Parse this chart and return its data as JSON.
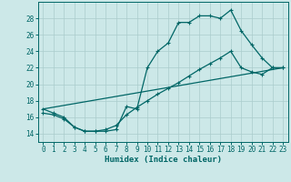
{
  "xlabel": "Humidex (Indice chaleur)",
  "background_color": "#cce8e8",
  "grid_color": "#aacccc",
  "line_color": "#006666",
  "xlim": [
    -0.5,
    23.5
  ],
  "ylim": [
    13.0,
    30.0
  ],
  "yticks": [
    14,
    16,
    18,
    20,
    22,
    24,
    26,
    28
  ],
  "xticks": [
    0,
    1,
    2,
    3,
    4,
    5,
    6,
    7,
    8,
    9,
    10,
    11,
    12,
    13,
    14,
    15,
    16,
    17,
    18,
    19,
    20,
    21,
    22,
    23
  ],
  "line1_x": [
    0,
    1,
    2,
    3,
    4,
    5,
    6,
    7,
    8,
    9,
    10,
    11,
    12,
    13,
    14,
    15,
    16,
    17,
    18,
    19,
    20,
    21,
    22,
    23
  ],
  "line1_y": [
    17.0,
    16.5,
    16.0,
    14.8,
    14.3,
    14.3,
    14.3,
    14.5,
    17.3,
    17.0,
    22.0,
    24.0,
    25.0,
    27.5,
    27.5,
    28.3,
    28.3,
    28.0,
    29.0,
    26.5,
    24.8,
    23.2,
    22.0,
    22.0
  ],
  "line2_x": [
    0,
    23
  ],
  "line2_y": [
    17.0,
    22.0
  ],
  "line3_x": [
    0,
    1,
    2,
    3,
    4,
    5,
    6,
    7,
    8,
    9,
    10,
    11,
    12,
    13,
    14,
    15,
    16,
    17,
    18,
    19,
    20,
    21,
    22,
    23
  ],
  "line3_y": [
    16.5,
    16.3,
    15.8,
    14.8,
    14.3,
    14.3,
    14.5,
    15.0,
    16.3,
    17.2,
    18.0,
    18.8,
    19.5,
    20.2,
    21.0,
    21.8,
    22.5,
    23.2,
    24.0,
    22.0,
    21.5,
    21.2,
    22.0,
    22.0
  ]
}
